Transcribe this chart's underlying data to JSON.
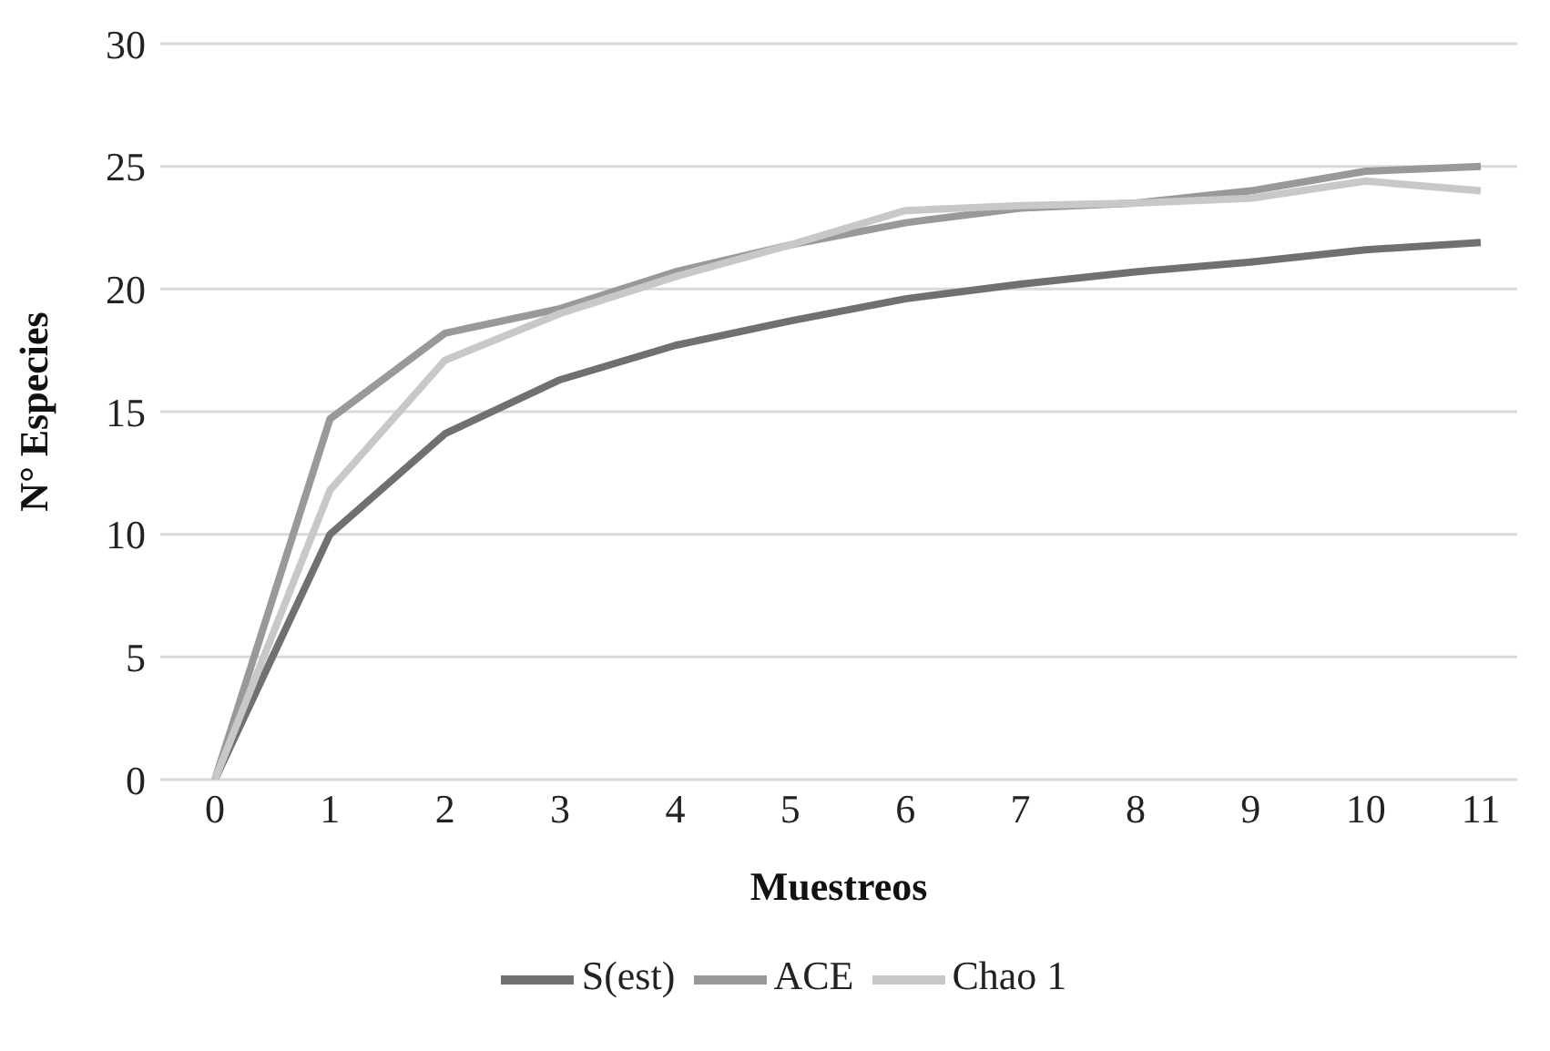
{
  "chart_data": {
    "type": "line",
    "xlabel": "Muestreos",
    "ylabel": "N° Especies",
    "categories": [
      "0",
      "1",
      "2",
      "3",
      "4",
      "5",
      "6",
      "7",
      "8",
      "9",
      "10",
      "11"
    ],
    "series": [
      {
        "name": "S(est)",
        "color": "#707070",
        "values": [
          0,
          10,
          14.1,
          16.3,
          17.7,
          18.7,
          19.6,
          20.2,
          20.7,
          21.1,
          21.6,
          21.9
        ]
      },
      {
        "name": "ACE",
        "color": "#999999",
        "values": [
          0,
          14.7,
          18.2,
          19.2,
          20.7,
          21.8,
          22.7,
          23.3,
          23.5,
          24.0,
          24.8,
          25.0
        ]
      },
      {
        "name": "Chao 1",
        "color": "#c8c8c8",
        "values": [
          0,
          11.8,
          17.1,
          19.0,
          20.5,
          21.8,
          23.2,
          23.4,
          23.5,
          23.7,
          24.4,
          24.0
        ]
      }
    ],
    "ylim": [
      0,
      30
    ],
    "yticks": [
      0,
      5,
      10,
      15,
      20,
      25,
      30
    ],
    "grid": "y",
    "legend": "bottom",
    "marker": "none",
    "line_style": "solid"
  }
}
